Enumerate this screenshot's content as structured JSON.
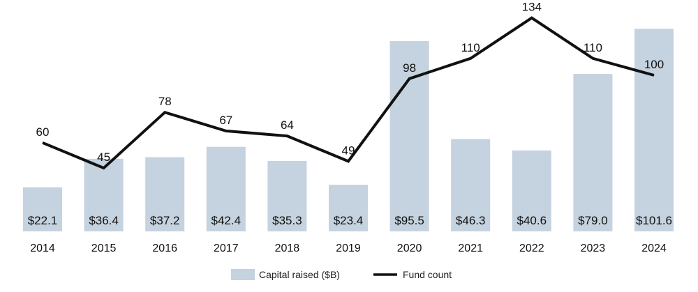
{
  "chart_data": {
    "type": "bar",
    "categories": [
      "2014",
      "2015",
      "2016",
      "2017",
      "2018",
      "2019",
      "2020",
      "2021",
      "2022",
      "2023",
      "2024"
    ],
    "series": [
      {
        "name": "Capital raised ($B)",
        "type": "bar",
        "values": [
          22.1,
          36.4,
          37.2,
          42.4,
          35.3,
          23.4,
          95.5,
          46.3,
          40.6,
          79.0,
          101.6
        ],
        "labels": [
          "$22.1",
          "$36.4",
          "$37.2",
          "$42.4",
          "$35.3",
          "$23.4",
          "$95.5",
          "$46.3",
          "$40.6",
          "$79.0",
          "$101.6"
        ],
        "color": "#c5d2df"
      },
      {
        "name": "Fund count",
        "type": "line",
        "values": [
          60,
          45,
          78,
          67,
          64,
          49,
          98,
          110,
          134,
          110,
          100
        ],
        "labels": [
          "60",
          "45",
          "78",
          "67",
          "64",
          "49",
          "98",
          "110",
          "134",
          "110",
          "100"
        ],
        "color": "#111111"
      }
    ],
    "title": "",
    "xlabel": "",
    "ylabel": "",
    "grid": false,
    "legend_position": "bottom-center"
  },
  "legend": {
    "bar_label": "Capital raised ($B)",
    "line_label": "Fund count"
  }
}
